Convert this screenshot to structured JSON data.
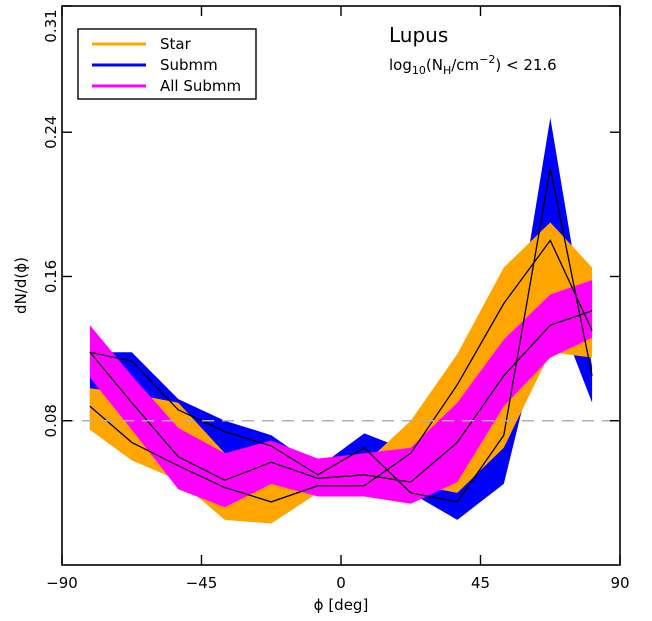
{
  "chart_data": {
    "type": "area",
    "xlabel": "ϕ [deg]",
    "ylabel": "dN/d(ϕ)",
    "xlim": [
      -90,
      90
    ],
    "ylim": [
      0,
      0.31
    ],
    "xticks": [
      -90,
      -45,
      0,
      45,
      90
    ],
    "xtick_labels": [
      "−90",
      "−45",
      "0",
      "45",
      "90"
    ],
    "yticks": [
      0.08,
      0.16,
      0.24,
      0.31
    ],
    "ytick_labels": [
      "0.08",
      "0.16",
      "0.24",
      "0.31"
    ],
    "grid": false,
    "legend_position": "top-left",
    "annotation": {
      "title": "Lupus",
      "condition_prefix": "log",
      "condition_sub": "10",
      "condition_open": "(N",
      "condition_sub2": "H",
      "condition_mid": "/cm",
      "condition_sup": "−2",
      "condition_suffix": ") < 21.6"
    },
    "reference_line": {
      "y": 0.08,
      "style": "dashed",
      "color": "#b0b0b0"
    },
    "x": [
      -81,
      -67.5,
      -52.5,
      -37.5,
      -22.5,
      -7.5,
      7.5,
      22.5,
      37.5,
      52.5,
      67.5,
      81
    ],
    "series": [
      {
        "name": "Submm",
        "color": "#0000ff",
        "center": [
          0.118,
          0.113,
          0.086,
          0.074,
          0.066,
          0.05,
          0.065,
          0.04,
          0.035,
          0.072,
          0.22,
          0.105
        ],
        "upper": [
          0.118,
          0.118,
          0.092,
          0.08,
          0.072,
          0.054,
          0.073,
          0.063,
          0.045,
          0.09,
          0.248,
          0.11
        ],
        "lower": [
          0.075,
          0.065,
          0.055,
          0.05,
          0.045,
          0.045,
          0.04,
          0.04,
          0.025,
          0.045,
          0.15,
          0.09
        ]
      },
      {
        "name": "Star",
        "color": "#ffa500",
        "center": [
          0.088,
          0.068,
          0.055,
          0.043,
          0.035,
          0.044,
          0.044,
          0.062,
          0.1,
          0.145,
          0.18,
          0.13
        ],
        "upper": [
          0.098,
          0.095,
          0.09,
          0.062,
          0.055,
          0.055,
          0.056,
          0.08,
          0.117,
          0.165,
          0.19,
          0.165
        ],
        "lower": [
          0.075,
          0.058,
          0.047,
          0.025,
          0.023,
          0.04,
          0.042,
          0.045,
          0.04,
          0.065,
          0.118,
          0.115
        ]
      },
      {
        "name": "All Submm",
        "color": "#ff00ff",
        "center": [
          0.118,
          0.09,
          0.06,
          0.047,
          0.057,
          0.048,
          0.05,
          0.046,
          0.068,
          0.105,
          0.133,
          0.141
        ],
        "upper": [
          0.133,
          0.105,
          0.076,
          0.062,
          0.069,
          0.059,
          0.062,
          0.065,
          0.09,
          0.125,
          0.15,
          0.158
        ],
        "lower": [
          0.104,
          0.075,
          0.042,
          0.032,
          0.045,
          0.038,
          0.038,
          0.034,
          0.046,
          0.088,
          0.115,
          0.126
        ]
      }
    ],
    "center_lines": [
      {
        "name": "Submm",
        "values": [
          0.118,
          0.113,
          0.086,
          0.074,
          0.066,
          0.05,
          0.065,
          0.04,
          0.035,
          0.072,
          0.22,
          0.105
        ]
      },
      {
        "name": "Star",
        "values": [
          0.088,
          0.068,
          0.055,
          0.043,
          0.035,
          0.044,
          0.044,
          0.062,
          0.1,
          0.145,
          0.18,
          0.13
        ]
      },
      {
        "name": "All Submm",
        "values": [
          0.118,
          0.09,
          0.06,
          0.047,
          0.057,
          0.048,
          0.05,
          0.046,
          0.068,
          0.105,
          0.133,
          0.141
        ]
      }
    ],
    "legend": [
      {
        "label": "Star",
        "color": "#ffa500"
      },
      {
        "label": "Submm",
        "color": "#0000ff"
      },
      {
        "label": "All Submm",
        "color": "#ff00ff"
      }
    ]
  }
}
